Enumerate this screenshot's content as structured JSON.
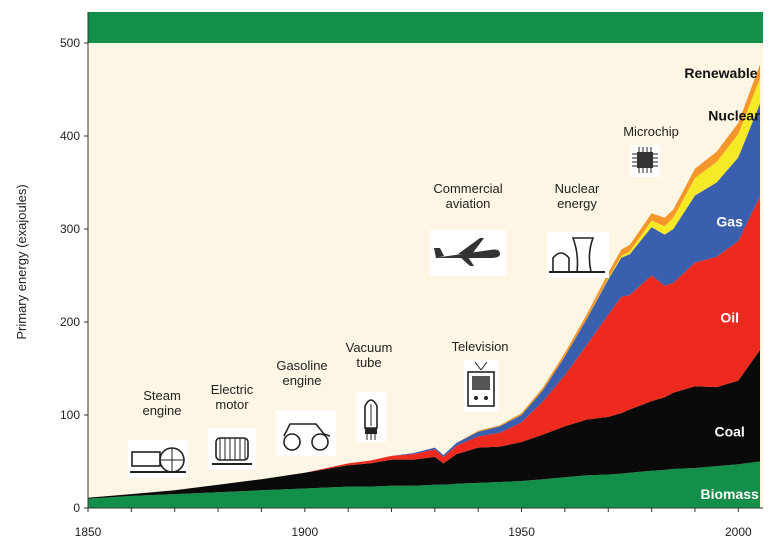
{
  "chart_data": {
    "type": "area",
    "stacked": true,
    "ylabel": "Primary energy (exajoules)",
    "xlim": [
      1850,
      2005
    ],
    "ylim": [
      0,
      500
    ],
    "xticks": [
      "1850",
      "1900",
      "1950",
      "2000"
    ],
    "yticks": [
      "0",
      "100",
      "200",
      "300",
      "400",
      "500"
    ],
    "x": [
      1850,
      1860,
      1870,
      1880,
      1890,
      1900,
      1910,
      1915,
      1920,
      1925,
      1930,
      1932,
      1935,
      1940,
      1945,
      1950,
      1955,
      1960,
      1965,
      1970,
      1973,
      1975,
      1980,
      1983,
      1985,
      1990,
      1995,
      2000,
      2005
    ],
    "series": [
      {
        "name": "Biomass",
        "color": "#12904a",
        "values": [
          10,
          13,
          15,
          17,
          19,
          21,
          23,
          23,
          24,
          24,
          25,
          25,
          26,
          27,
          28,
          29,
          31,
          33,
          35,
          36,
          37,
          38,
          40,
          41,
          42,
          43,
          45,
          47,
          50
        ]
      },
      {
        "name": "Coal",
        "color": "#0a0a0a",
        "values": [
          1,
          2,
          4,
          8,
          12,
          17,
          23,
          25,
          28,
          28,
          30,
          23,
          32,
          38,
          38,
          42,
          48,
          55,
          60,
          62,
          65,
          68,
          75,
          78,
          82,
          88,
          85,
          90,
          120
        ]
      },
      {
        "name": "Oil",
        "color": "#ee2a1e",
        "values": [
          0,
          0,
          0,
          0,
          0,
          0,
          2,
          3,
          4,
          6,
          8,
          7,
          9,
          12,
          15,
          21,
          36,
          55,
          80,
          110,
          125,
          123,
          135,
          120,
          118,
          133,
          140,
          150,
          165
        ]
      },
      {
        "name": "Gas",
        "color": "#3a5fae",
        "values": [
          0,
          0,
          0,
          0,
          0,
          0,
          0,
          0,
          0,
          1,
          2,
          2,
          3,
          5,
          7,
          8,
          12,
          20,
          28,
          38,
          42,
          44,
          52,
          55,
          58,
          72,
          80,
          90,
          100
        ]
      },
      {
        "name": "Nuclear",
        "color": "#f5ea25",
        "values": [
          0,
          0,
          0,
          0,
          0,
          0,
          0,
          0,
          0,
          0,
          0,
          0,
          0,
          0,
          0,
          0,
          0,
          0,
          0,
          1,
          2,
          3,
          7,
          9,
          12,
          19,
          22,
          25,
          27
        ]
      },
      {
        "name": "Renewable",
        "color": "#f5962a",
        "values": [
          0,
          0,
          0,
          0,
          0,
          0,
          0,
          0,
          0,
          0,
          0,
          0,
          0,
          1,
          1,
          2,
          3,
          4,
          5,
          6,
          7,
          7,
          8,
          9,
          9,
          10,
          11,
          12,
          15
        ]
      }
    ],
    "annotations": [
      {
        "label": "Steam engine",
        "year": 1866,
        "icon": "steam-engine-icon"
      },
      {
        "label": "Electric motor",
        "year": 1883,
        "icon": "electric-motor-icon"
      },
      {
        "label": "Gasoline engine",
        "year": 1899,
        "icon": "gasoline-car-icon"
      },
      {
        "label": "Vacuum tube",
        "year": 1915,
        "icon": "vacuum-tube-icon"
      },
      {
        "label": "Television",
        "year": 1942,
        "icon": "television-icon"
      },
      {
        "label": "Commercial aviation",
        "year": 1937,
        "icon": "airplane-icon"
      },
      {
        "label": "Nuclear energy",
        "year": 1961,
        "icon": "nuclear-plant-icon"
      },
      {
        "label": "Microchip",
        "year": 1977,
        "icon": "microchip-icon"
      }
    ],
    "colors": {
      "background": "#fdf6e4",
      "top_band": "#12904a"
    }
  }
}
